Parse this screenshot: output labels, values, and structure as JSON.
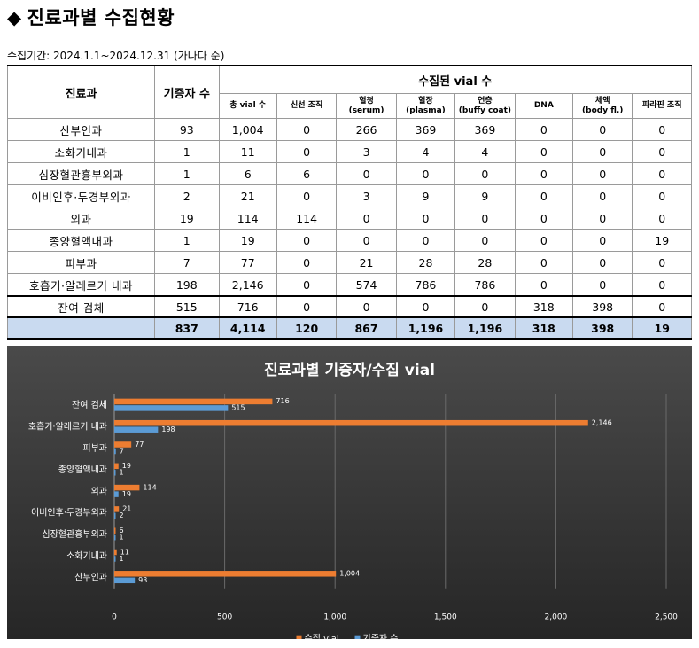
{
  "page": {
    "title_marker": "◆",
    "title": "진료과별  수집현황",
    "period": "수집기간: 2024.1.1~2024.12.31 (가나다 순)"
  },
  "table": {
    "header": {
      "dept": "진료과",
      "donors": "기증자 수",
      "vial_group": "수집된 vial 수"
    },
    "sub_headers": [
      [
        "총 vial 수"
      ],
      [
        "신선 조직"
      ],
      [
        "혈청",
        "(serum)"
      ],
      [
        "혈장",
        "(plasma)"
      ],
      [
        "연층",
        "(buffy coat)"
      ],
      [
        "DNA"
      ],
      [
        "체액",
        "(body fl.)"
      ],
      [
        "파라핀 조직"
      ]
    ],
    "rows": [
      [
        "산부인과",
        "93",
        "1,004",
        "0",
        "266",
        "369",
        "369",
        "0",
        "0",
        "0"
      ],
      [
        "소화기내과",
        "1",
        "11",
        "0",
        "3",
        "4",
        "4",
        "0",
        "0",
        "0"
      ],
      [
        "심장혈관흉부외과",
        "1",
        "6",
        "6",
        "0",
        "0",
        "0",
        "0",
        "0",
        "0"
      ],
      [
        "이비인후·두경부외과",
        "2",
        "21",
        "0",
        "3",
        "9",
        "9",
        "0",
        "0",
        "0"
      ],
      [
        "외과",
        "19",
        "114",
        "114",
        "0",
        "0",
        "0",
        "0",
        "0",
        "0"
      ],
      [
        "종양혈액내과",
        "1",
        "19",
        "0",
        "0",
        "0",
        "0",
        "0",
        "0",
        "19"
      ],
      [
        "피부과",
        "7",
        "77",
        "0",
        "21",
        "28",
        "28",
        "0",
        "0",
        "0"
      ],
      [
        "호흡기·알레르기 내과",
        "198",
        "2,146",
        "0",
        "574",
        "786",
        "786",
        "0",
        "0",
        "0"
      ]
    ],
    "remnant_row": [
      "잔여 검체",
      "515",
      "716",
      "0",
      "0",
      "0",
      "0",
      "318",
      "398",
      "0"
    ],
    "total_row": [
      "",
      "837",
      "4,114",
      "120",
      "867",
      "1,196",
      "1,196",
      "318",
      "398",
      "19"
    ]
  },
  "chart_data": {
    "type": "bar",
    "orientation": "horizontal",
    "title": "진료과별  기증자/수집 vial",
    "categories": [
      "산부인과",
      "소화기내과",
      "심장혈관흉부외과",
      "이비인후·두경부외과",
      "외과",
      "종양혈액내과",
      "피부과",
      "호흡기·알레르기 내과",
      "잔여 검체"
    ],
    "series": [
      {
        "name": "수집 vial",
        "color": "#ed7d31",
        "values": [
          1004,
          11,
          6,
          21,
          114,
          19,
          77,
          2146,
          716
        ]
      },
      {
        "name": "기증자 수",
        "color": "#5b9bd5",
        "values": [
          93,
          1,
          1,
          2,
          19,
          1,
          7,
          198,
          515
        ]
      }
    ],
    "xlim": [
      0,
      2500
    ],
    "xticks": [
      "0",
      "500",
      "1,000",
      "1,500",
      "2,000",
      "2,500"
    ],
    "gridlines": true,
    "legend_position": "bottom",
    "background": "#333333"
  }
}
